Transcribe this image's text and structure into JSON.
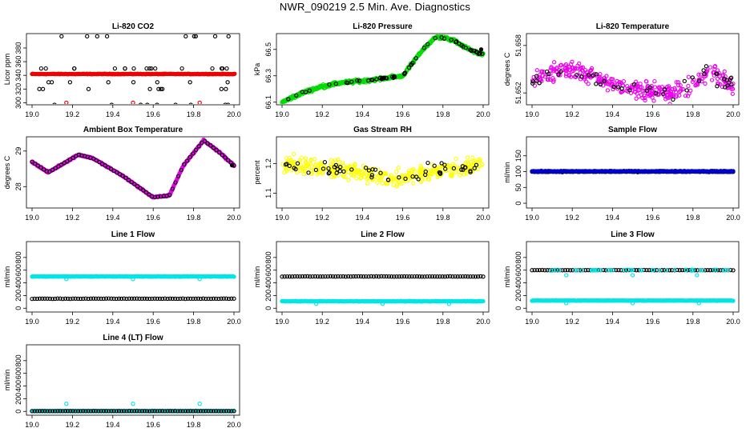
{
  "figure": {
    "title": "NWR_090219  2.5 Min. Ave. Diagnostics"
  },
  "chart_data": [
    {
      "type": "scatter",
      "title": "Li-820 CO2",
      "ylabel": "Licor ppm",
      "xlim": [
        19.0,
        20.0
      ],
      "xticks": [
        "19.0",
        "19.2",
        "19.4",
        "19.6",
        "19.8",
        "20.0"
      ],
      "ylim": [
        297,
        401
      ],
      "yticks": [
        300,
        320,
        340,
        360,
        380
      ],
      "series": [
        {
          "name": "black",
          "color": "#000000",
          "values": [
            297,
            320,
            350,
            397,
            350,
            330
          ]
        },
        {
          "name": "red",
          "color": "#ee0000",
          "values": [
            342,
            342,
            342,
            342
          ]
        }
      ]
    },
    {
      "type": "scatter",
      "title": "Li-820 Pressure",
      "ylabel": "kPa",
      "xlim": [
        19.0,
        20.0
      ],
      "xticks": [
        "19.0",
        "19.2",
        "19.4",
        "19.6",
        "19.8",
        "20.0"
      ],
      "ylim": [
        66.08,
        66.62
      ],
      "yticks": [
        66.1,
        66.3,
        66.5
      ],
      "series": [
        {
          "name": "green",
          "color": "#00dd00",
          "x": [
            19.0,
            19.1,
            19.2,
            19.3,
            19.4,
            19.5,
            19.6,
            19.7,
            19.77,
            19.85,
            19.93,
            20.0
          ],
          "values": [
            66.1,
            66.17,
            66.22,
            66.25,
            66.26,
            66.28,
            66.3,
            66.5,
            66.6,
            66.57,
            66.5,
            66.46
          ]
        },
        {
          "name": "black",
          "color": "#000000",
          "values": []
        }
      ]
    },
    {
      "type": "scatter",
      "title": "Li-820 Temperature",
      "ylabel": "degrees C",
      "xlim": [
        19.0,
        20.0
      ],
      "xticks": [
        "19.0",
        "19.2",
        "19.4",
        "19.6",
        "19.8",
        "20.0"
      ],
      "ylim": [
        51.6505,
        51.6595
      ],
      "yticks": [
        51.652,
        51.658
      ],
      "series": [
        {
          "name": "magenta",
          "color": "#ee00ee",
          "values": []
        },
        {
          "name": "black",
          "color": "#000000",
          "values": []
        }
      ]
    },
    {
      "type": "scatter",
      "title": "Ambient Box Temperature",
      "ylabel": "degrees C",
      "xlim": [
        19.0,
        20.0
      ],
      "xticks": [
        "19.0",
        "19.2",
        "19.4",
        "19.6",
        "19.8",
        "20.0"
      ],
      "ylim": [
        27.4,
        29.4
      ],
      "yticks": [
        28.0,
        29.0
      ],
      "series": [
        {
          "name": "magenta",
          "color": "#ee00ee",
          "x": [
            19.0,
            19.08,
            19.23,
            19.3,
            19.45,
            19.6,
            19.68,
            19.75,
            19.85,
            19.92,
            20.0
          ],
          "values": [
            28.7,
            28.4,
            28.9,
            28.8,
            28.3,
            27.7,
            27.75,
            28.6,
            29.3,
            29.0,
            28.6
          ]
        },
        {
          "name": "black",
          "color": "#000000",
          "values": []
        }
      ]
    },
    {
      "type": "scatter",
      "title": "Gas Stream RH",
      "ylabel": "percent",
      "xlim": [
        19.0,
        20.0
      ],
      "xticks": [
        "19.0",
        "19.2",
        "19.4",
        "19.6",
        "19.8",
        "20.0"
      ],
      "ylim": [
        1.05,
        1.29
      ],
      "yticks": [
        1.1,
        1.2
      ],
      "series": [
        {
          "name": "yellow",
          "color": "#ffff00",
          "values": []
        },
        {
          "name": "black",
          "color": "#000000",
          "values": []
        }
      ]
    },
    {
      "type": "scatter",
      "title": "Sample Flow",
      "ylabel": "ml/min",
      "xlim": [
        19.0,
        20.0
      ],
      "xticks": [
        "19.0",
        "19.2",
        "19.4",
        "19.6",
        "19.8",
        "20.0"
      ],
      "ylim": [
        -15,
        210
      ],
      "yticks": [
        0,
        50,
        100,
        150
      ],
      "series": [
        {
          "name": "black",
          "color": "#000000",
          "values": [
            100
          ]
        },
        {
          "name": "blue",
          "color": "#0000cc",
          "values": [
            100
          ]
        }
      ]
    },
    {
      "type": "scatter",
      "title": "Line 1 Flow",
      "ylabel": "ml/min",
      "xlim": [
        19.0,
        20.0
      ],
      "xticks": [
        "19.0",
        "19.2",
        "19.4",
        "19.6",
        "19.8",
        "20.0"
      ],
      "ylim": [
        -60,
        1050
      ],
      "yticks": [
        0,
        200,
        400,
        600,
        800
      ],
      "series": [
        {
          "name": "cyan",
          "color": "#00e5e5",
          "values": [
            500
          ]
        },
        {
          "name": "black",
          "color": "#000000",
          "values": [
            150
          ]
        }
      ]
    },
    {
      "type": "scatter",
      "title": "Line 2 Flow",
      "ylabel": "ml/min",
      "xlim": [
        19.0,
        20.0
      ],
      "xticks": [
        "19.0",
        "19.2",
        "19.4",
        "19.6",
        "19.8",
        "20.0"
      ],
      "ylim": [
        -60,
        1050
      ],
      "yticks": [
        0,
        200,
        400,
        600,
        800
      ],
      "series": [
        {
          "name": "cyan",
          "color": "#00e5e5",
          "values": [
            110
          ]
        },
        {
          "name": "black",
          "color": "#000000",
          "values": [
            500
          ]
        }
      ]
    },
    {
      "type": "scatter",
      "title": "Line 3 Flow",
      "ylabel": "ml/min",
      "xlim": [
        19.0,
        20.0
      ],
      "xticks": [
        "19.0",
        "19.2",
        "19.4",
        "19.6",
        "19.8",
        "20.0"
      ],
      "ylim": [
        -60,
        1050
      ],
      "yticks": [
        0,
        200,
        400,
        600,
        800
      ],
      "series": [
        {
          "name": "cyan",
          "color": "#00e5e5",
          "values": [
            120
          ]
        },
        {
          "name": "black",
          "color": "#000000",
          "values": [
            600
          ]
        }
      ]
    },
    {
      "type": "scatter",
      "title": "Line 4 (LT) Flow",
      "ylabel": "ml/min",
      "xlim": [
        19.0,
        20.0
      ],
      "xticks": [
        "19.0",
        "19.2",
        "19.4",
        "19.6",
        "19.8",
        "20.0"
      ],
      "ylim": [
        -60,
        1050
      ],
      "yticks": [
        0,
        200,
        400,
        600,
        800
      ],
      "series": [
        {
          "name": "black",
          "color": "#000000",
          "values": [
            5
          ]
        },
        {
          "name": "cyan",
          "color": "#00e5e5",
          "values": [
            5,
            120
          ]
        }
      ]
    }
  ]
}
